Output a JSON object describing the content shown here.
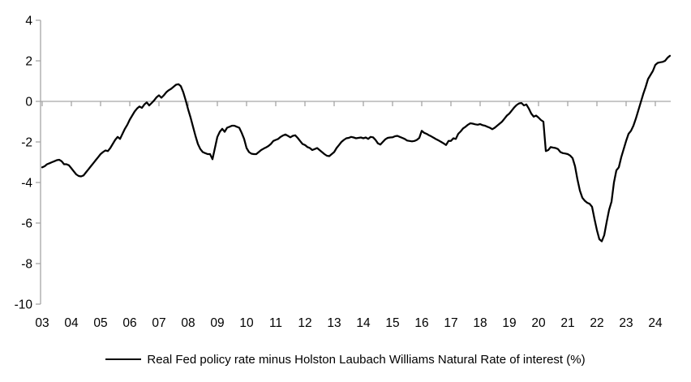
{
  "chart_data": {
    "type": "line",
    "title": "",
    "legend_label": "Real Fed policy rate minus Holston Laubach Williams Natural Rate of interest (%)",
    "xlabel": "",
    "ylabel": "",
    "ylim": [
      -10,
      4
    ],
    "y_ticks": [
      "4",
      "2",
      "0",
      "-2",
      "-4",
      "-6",
      "-8",
      "-10"
    ],
    "y_tick_values": [
      4,
      2,
      0,
      -2,
      -4,
      -6,
      -8,
      -10
    ],
    "x_tick_labels": [
      "03",
      "04",
      "05",
      "06",
      "07",
      "08",
      "09",
      "10",
      "11",
      "12",
      "13",
      "14",
      "15",
      "16",
      "17",
      "18",
      "19",
      "20",
      "21",
      "22",
      "23",
      "24"
    ],
    "points_per_year": 12,
    "grid": "zero-line-only",
    "legend_position": "bottom-center",
    "axis_color": "#a6a6a6",
    "line_color": "#000000",
    "series": [
      {
        "name": "Real Fed policy rate minus Holston Laubach Williams Natural Rate of interest (%)",
        "start": "2003-01",
        "end": "2024-07",
        "frequency": "monthly",
        "values": [
          -3.25,
          -3.2,
          -3.1,
          -3.05,
          -3.0,
          -2.95,
          -2.9,
          -2.88,
          -2.95,
          -3.1,
          -3.1,
          -3.15,
          -3.3,
          -3.45,
          -3.6,
          -3.68,
          -3.7,
          -3.65,
          -3.5,
          -3.35,
          -3.2,
          -3.05,
          -2.9,
          -2.75,
          -2.6,
          -2.5,
          -2.42,
          -2.45,
          -2.3,
          -2.1,
          -1.9,
          -1.75,
          -1.85,
          -1.6,
          -1.35,
          -1.15,
          -0.9,
          -0.7,
          -0.5,
          -0.35,
          -0.25,
          -0.32,
          -0.15,
          -0.05,
          -0.2,
          -0.08,
          0.05,
          0.2,
          0.3,
          0.18,
          0.3,
          0.45,
          0.55,
          0.62,
          0.72,
          0.82,
          0.85,
          0.75,
          0.45,
          0.05,
          -0.4,
          -0.8,
          -1.25,
          -1.7,
          -2.1,
          -2.35,
          -2.5,
          -2.55,
          -2.6,
          -2.6,
          -2.85,
          -2.3,
          -1.75,
          -1.5,
          -1.35,
          -1.5,
          -1.3,
          -1.25,
          -1.2,
          -1.2,
          -1.25,
          -1.3,
          -1.55,
          -1.85,
          -2.3,
          -2.5,
          -2.58,
          -2.6,
          -2.6,
          -2.5,
          -2.4,
          -2.33,
          -2.27,
          -2.2,
          -2.1,
          -1.95,
          -1.9,
          -1.85,
          -1.75,
          -1.68,
          -1.63,
          -1.7,
          -1.77,
          -1.7,
          -1.67,
          -1.8,
          -1.95,
          -2.1,
          -2.15,
          -2.25,
          -2.3,
          -2.4,
          -2.35,
          -2.3,
          -2.4,
          -2.5,
          -2.6,
          -2.68,
          -2.7,
          -2.6,
          -2.5,
          -2.3,
          -2.15,
          -2.0,
          -1.9,
          -1.82,
          -1.8,
          -1.75,
          -1.78,
          -1.82,
          -1.8,
          -1.78,
          -1.82,
          -1.78,
          -1.85,
          -1.75,
          -1.77,
          -1.9,
          -2.07,
          -2.13,
          -2.0,
          -1.87,
          -1.8,
          -1.78,
          -1.77,
          -1.72,
          -1.7,
          -1.75,
          -1.8,
          -1.85,
          -1.93,
          -1.95,
          -1.97,
          -1.95,
          -1.9,
          -1.8,
          -1.45,
          -1.55,
          -1.6,
          -1.67,
          -1.73,
          -1.8,
          -1.87,
          -1.93,
          -2.0,
          -2.07,
          -2.15,
          -1.95,
          -1.95,
          -1.82,
          -1.85,
          -1.6,
          -1.48,
          -1.33,
          -1.25,
          -1.15,
          -1.08,
          -1.1,
          -1.13,
          -1.15,
          -1.12,
          -1.17,
          -1.2,
          -1.25,
          -1.3,
          -1.37,
          -1.3,
          -1.2,
          -1.1,
          -1.0,
          -0.85,
          -0.7,
          -0.6,
          -0.45,
          -0.3,
          -0.18,
          -0.1,
          -0.08,
          -0.2,
          -0.15,
          -0.35,
          -0.6,
          -0.75,
          -0.7,
          -0.8,
          -0.92,
          -1.0,
          -2.45,
          -2.4,
          -2.25,
          -2.28,
          -2.3,
          -2.35,
          -2.5,
          -2.55,
          -2.57,
          -2.6,
          -2.67,
          -2.8,
          -3.2,
          -3.85,
          -4.4,
          -4.75,
          -4.9,
          -5.0,
          -5.05,
          -5.2,
          -5.8,
          -6.35,
          -6.8,
          -6.9,
          -6.6,
          -5.95,
          -5.35,
          -4.95,
          -4.0,
          -3.4,
          -3.25,
          -2.75,
          -2.35,
          -1.95,
          -1.6,
          -1.45,
          -1.2,
          -0.85,
          -0.45,
          -0.05,
          0.35,
          0.7,
          1.1,
          1.3,
          1.5,
          1.8,
          1.9,
          1.93,
          1.95,
          2.0,
          2.15,
          2.25
        ]
      }
    ]
  }
}
